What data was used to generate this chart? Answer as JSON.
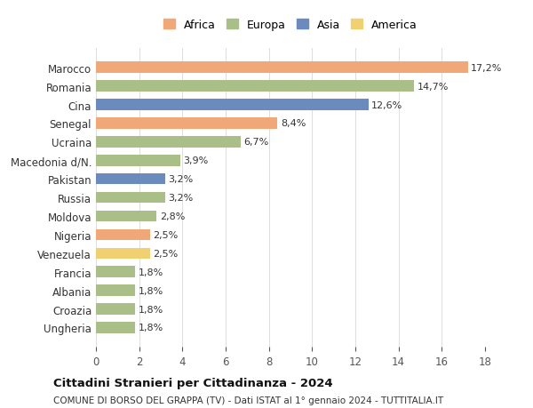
{
  "countries": [
    "Marocco",
    "Romania",
    "Cina",
    "Senegal",
    "Ucraina",
    "Macedonia d/N.",
    "Pakistan",
    "Russia",
    "Moldova",
    "Nigeria",
    "Venezuela",
    "Francia",
    "Albania",
    "Croazia",
    "Ungheria"
  ],
  "values": [
    17.2,
    14.7,
    12.6,
    8.4,
    6.7,
    3.9,
    3.2,
    3.2,
    2.8,
    2.5,
    2.5,
    1.8,
    1.8,
    1.8,
    1.8
  ],
  "labels": [
    "17,2%",
    "14,7%",
    "12,6%",
    "8,4%",
    "6,7%",
    "3,9%",
    "3,2%",
    "3,2%",
    "2,8%",
    "2,5%",
    "2,5%",
    "1,8%",
    "1,8%",
    "1,8%",
    "1,8%"
  ],
  "continents": [
    "Africa",
    "Europa",
    "Asia",
    "Africa",
    "Europa",
    "Europa",
    "Asia",
    "Europa",
    "Europa",
    "Africa",
    "America",
    "Europa",
    "Europa",
    "Europa",
    "Europa"
  ],
  "colors": {
    "Africa": "#F0A878",
    "Europa": "#AABF88",
    "Asia": "#6B8BBF",
    "America": "#F0D070"
  },
  "legend_order": [
    "Africa",
    "Europa",
    "Asia",
    "America"
  ],
  "xlim": [
    0,
    18
  ],
  "xticks": [
    0,
    2,
    4,
    6,
    8,
    10,
    12,
    14,
    16,
    18
  ],
  "title": "Cittadini Stranieri per Cittadinanza - 2024",
  "subtitle": "COMUNE DI BORSO DEL GRAPPA (TV) - Dati ISTAT al 1° gennaio 2024 - TUTTITALIA.IT",
  "background_color": "#ffffff",
  "grid_color": "#dddddd"
}
